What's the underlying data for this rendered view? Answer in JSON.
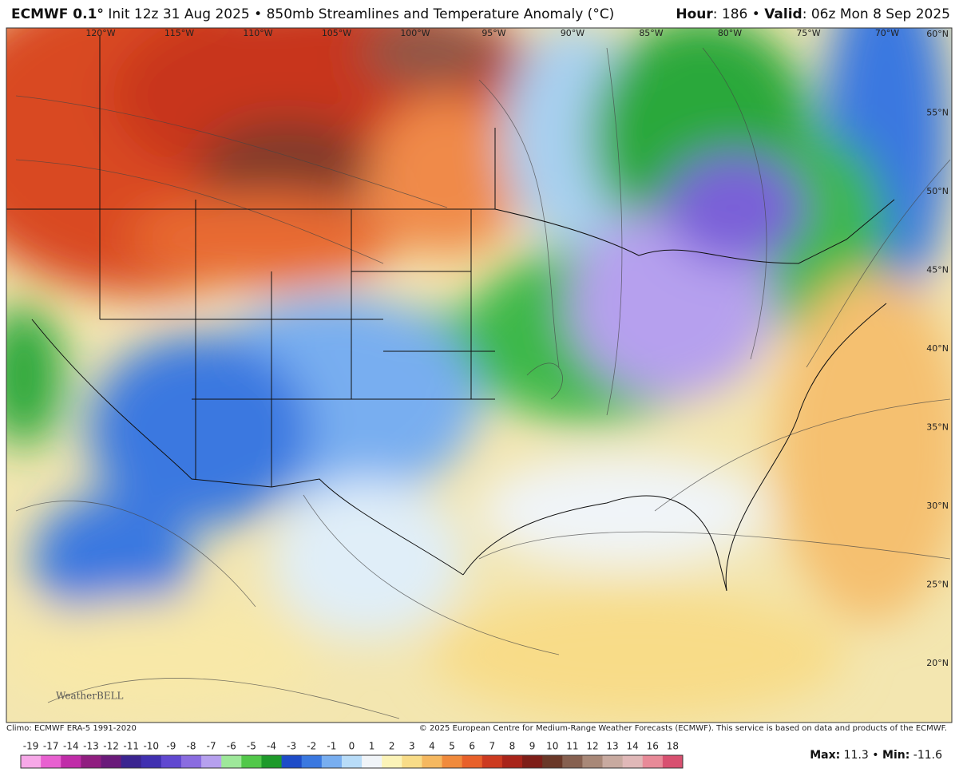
{
  "header": {
    "model": "ECMWF 0.1°",
    "description": "Init 12z 31 Aug 2025 • 850mb Streamlines and Temperature Anomaly (°C)",
    "hour_label": "Hour",
    "hour_value": ": 186 •",
    "valid_label": "Valid",
    "valid_value": ": 06z Mon 8 Sep 2025"
  },
  "map": {
    "longitude_labels": [
      "120°W",
      "115°W",
      "110°W",
      "105°W",
      "100°W",
      "95°W",
      "90°W",
      "85°W",
      "80°W",
      "75°W",
      "70°W"
    ],
    "latitude_labels": [
      "60°N",
      "55°N",
      "50°N",
      "45°N",
      "40°N",
      "35°N",
      "30°N",
      "25°N",
      "20°N"
    ],
    "watermark": "WeatherBELL"
  },
  "footer": {
    "climo": "Climo: ECMWF ERA-5 1991-2020",
    "copyright": "© 2025 European Centre for Medium-Range Weather Forecasts (ECMWF). This service is based on data and products of the ECMWF."
  },
  "colorbar": {
    "labels": [
      -19,
      -17,
      -14,
      -13,
      -12,
      -11,
      -10,
      -9,
      -8,
      -7,
      -6,
      -5,
      -4,
      -3,
      -2,
      -1,
      0,
      1,
      2,
      3,
      4,
      5,
      6,
      7,
      8,
      9,
      10,
      11,
      12,
      13,
      14,
      16,
      18
    ],
    "colors": [
      "#f7a8e8",
      "#e860d0",
      "#c02ca8",
      "#901e80",
      "#6a1a7a",
      "#3a2490",
      "#4030b0",
      "#6048d0",
      "#8a6ce0",
      "#b6a0ee",
      "#9ee89a",
      "#52c84a",
      "#1e9a2a",
      "#1e4cc8",
      "#3a78e0",
      "#78aef0",
      "#b8dcf8",
      "#f0f4f8",
      "#fbf3b8",
      "#f8dc88",
      "#f5b860",
      "#f08a3c",
      "#e8602a",
      "#cc3a20",
      "#a8241a",
      "#7e1e18",
      "#6a3828",
      "#866050",
      "#a88878",
      "#c8aaa0",
      "#e0b8b8",
      "#e88a98",
      "#d85070"
    ]
  },
  "stats": {
    "max_label": "Max:",
    "max_value": 11.3,
    "separator": "•",
    "min_label": "Min:",
    "min_value": -11.6
  }
}
